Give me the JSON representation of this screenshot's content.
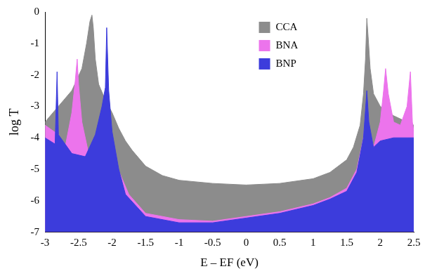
{
  "chart_data": {
    "type": "area",
    "x_label": "E – EF (eV)",
    "y_label": "log T",
    "xlim": [
      -3,
      2.5
    ],
    "xticks": [
      -3,
      -2.5,
      -2,
      -1.5,
      -1,
      -0.5,
      0,
      0.5,
      1,
      1.5,
      2,
      2.5
    ],
    "ylim": [
      -7,
      0
    ],
    "yticks": [
      -7,
      -6,
      -5,
      -4,
      -3,
      -2,
      -1,
      0
    ],
    "grid": false,
    "legend": "upper center",
    "series": [
      {
        "name": "CCA",
        "color": "#8c8c8c",
        "x": [
          -3,
          -2.8,
          -2.6,
          -2.45,
          -2.38,
          -2.33,
          -2.3,
          -2.28,
          -2.25,
          -2.2,
          -2.1,
          -2.0,
          -1.9,
          -1.8,
          -1.7,
          -1.5,
          -1.25,
          -1.0,
          -0.5,
          0,
          0.5,
          1.0,
          1.25,
          1.5,
          1.6,
          1.7,
          1.75,
          1.78,
          1.8,
          1.82,
          1.85,
          1.9,
          2.0,
          2.2,
          2.4,
          2.5
        ],
        "values": [
          -3.5,
          -3.0,
          -2.5,
          -1.8,
          -1.0,
          -0.3,
          -0.1,
          -0.5,
          -1.5,
          -2.3,
          -2.8,
          -3.2,
          -3.7,
          -4.1,
          -4.4,
          -4.9,
          -5.2,
          -5.35,
          -5.45,
          -5.5,
          -5.45,
          -5.3,
          -5.1,
          -4.7,
          -4.3,
          -3.6,
          -2.6,
          -1.5,
          -0.2,
          -0.8,
          -1.8,
          -2.6,
          -3.0,
          -3.3,
          -3.5,
          -3.6
        ]
      },
      {
        "name": "BNA",
        "color": "#ec74ec",
        "x": [
          -3,
          -2.8,
          -2.7,
          -2.6,
          -2.55,
          -2.52,
          -2.5,
          -2.45,
          -2.35,
          -2.25,
          -2.15,
          -2.1,
          -2.07,
          -2.03,
          -1.95,
          -1.85,
          -1.75,
          -1.5,
          -1.0,
          -0.5,
          0,
          0.5,
          1.0,
          1.25,
          1.5,
          1.65,
          1.75,
          1.8,
          1.83,
          1.9,
          2.0,
          2.05,
          2.08,
          2.12,
          2.2,
          2.3,
          2.4,
          2.45,
          2.48,
          2.5
        ],
        "values": [
          -3.6,
          -3.9,
          -4.3,
          -3.2,
          -2.2,
          -1.5,
          -2.3,
          -3.5,
          -4.5,
          -5.0,
          -4.2,
          -3.0,
          -2.5,
          -3.5,
          -4.8,
          -5.3,
          -5.8,
          -6.4,
          -6.6,
          -6.65,
          -6.5,
          -6.35,
          -6.1,
          -5.9,
          -5.6,
          -5.0,
          -4.0,
          -3.0,
          -3.6,
          -4.3,
          -3.5,
          -2.5,
          -1.8,
          -2.6,
          -3.5,
          -3.6,
          -3.0,
          -1.9,
          -3.5,
          -3.8
        ]
      },
      {
        "name": "BNP",
        "color": "#3c3cdc",
        "x": [
          -3,
          -2.85,
          -2.82,
          -2.8,
          -2.6,
          -2.4,
          -2.25,
          -2.15,
          -2.1,
          -2.08,
          -2.05,
          -2.0,
          -1.9,
          -1.8,
          -1.5,
          -1.0,
          -0.5,
          0,
          0.5,
          1.0,
          1.25,
          1.5,
          1.65,
          1.75,
          1.8,
          1.83,
          1.9,
          2.0,
          2.2,
          2.4,
          2.5
        ],
        "values": [
          -4.0,
          -4.2,
          -1.9,
          -3.9,
          -4.5,
          -4.6,
          -3.9,
          -3.0,
          -2.4,
          -0.5,
          -2.5,
          -3.8,
          -5.0,
          -5.8,
          -6.5,
          -6.7,
          -6.7,
          -6.55,
          -6.4,
          -6.15,
          -5.95,
          -5.7,
          -5.1,
          -4.0,
          -2.5,
          -3.5,
          -4.3,
          -4.1,
          -4.0,
          -4.0,
          -4.0
        ]
      }
    ]
  }
}
